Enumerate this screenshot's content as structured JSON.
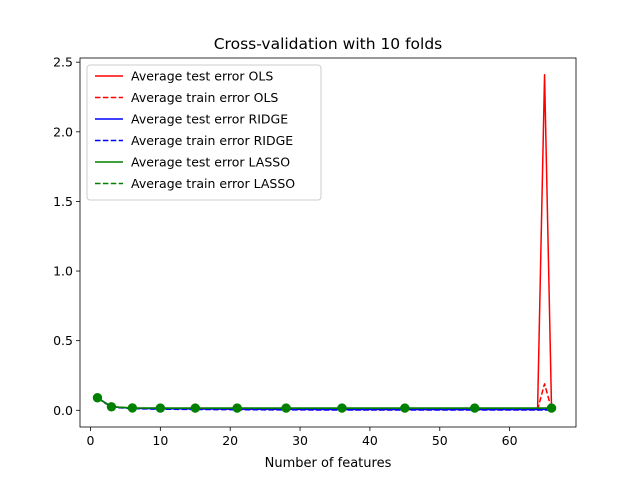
{
  "chart_data": {
    "type": "line",
    "title": "Cross-validation with 10 folds",
    "xlabel": "Number of features",
    "ylabel": "",
    "xlim": [
      -1.5,
      69.5
    ],
    "ylim": [
      -0.12,
      2.53
    ],
    "xticks": [
      0,
      10,
      20,
      30,
      40,
      50,
      60
    ],
    "xtick_labels": [
      "0",
      "10",
      "20",
      "30",
      "40",
      "50",
      "60"
    ],
    "yticks": [
      0.0,
      0.5,
      1.0,
      1.5,
      2.0,
      2.5
    ],
    "ytick_labels": [
      "0.0",
      "0.5",
      "1.0",
      "1.5",
      "2.0",
      "2.5"
    ],
    "grid": false,
    "legend_position": "upper-left",
    "x": [
      1,
      3,
      6,
      10,
      15,
      21,
      28,
      36,
      45,
      55,
      64,
      65,
      66
    ],
    "series": [
      {
        "name": "Average test error OLS",
        "color": "#ff0000",
        "linestyle": "solid",
        "markers": false,
        "values": [
          0.09,
          0.025,
          0.015,
          0.012,
          0.01,
          0.008,
          0.007,
          0.006,
          0.006,
          0.006,
          0.006,
          2.41,
          0.01
        ]
      },
      {
        "name": "Average train error OLS",
        "color": "#ff0000",
        "linestyle": "dashed",
        "markers": false,
        "values": [
          0.088,
          0.024,
          0.014,
          0.011,
          0.009,
          0.007,
          0.006,
          0.005,
          0.005,
          0.005,
          0.005,
          0.19,
          0.008
        ]
      },
      {
        "name": "Average test error RIDGE",
        "color": "#0000ff",
        "linestyle": "solid",
        "markers": false,
        "values": [
          0.09,
          0.025,
          0.015,
          0.012,
          0.01,
          0.009,
          0.008,
          0.007,
          0.007,
          0.007,
          0.007,
          0.007,
          0.007
        ]
      },
      {
        "name": "Average train error RIDGE",
        "color": "#0000ff",
        "linestyle": "dashed",
        "markers": false,
        "values": [
          0.088,
          0.022,
          0.012,
          0.008,
          0.006,
          0.004,
          0.003,
          0.002,
          0.002,
          0.002,
          0.002,
          0.002,
          0.002
        ]
      },
      {
        "name": "Average test error LASSO",
        "color": "#008000",
        "linestyle": "solid",
        "markers": true,
        "values": [
          0.09,
          0.025,
          0.017,
          0.016,
          0.016,
          0.016,
          0.016,
          0.016,
          0.016,
          0.016,
          0.016,
          0.016,
          0.016
        ],
        "marker_x": [
          1,
          3,
          6,
          10,
          15,
          21,
          28,
          36,
          45,
          55,
          66
        ]
      },
      {
        "name": "Average train error LASSO",
        "color": "#008000",
        "linestyle": "dashed",
        "markers": false,
        "values": [
          0.088,
          0.024,
          0.016,
          0.015,
          0.015,
          0.015,
          0.015,
          0.015,
          0.015,
          0.015,
          0.015,
          0.015,
          0.015
        ]
      }
    ]
  }
}
